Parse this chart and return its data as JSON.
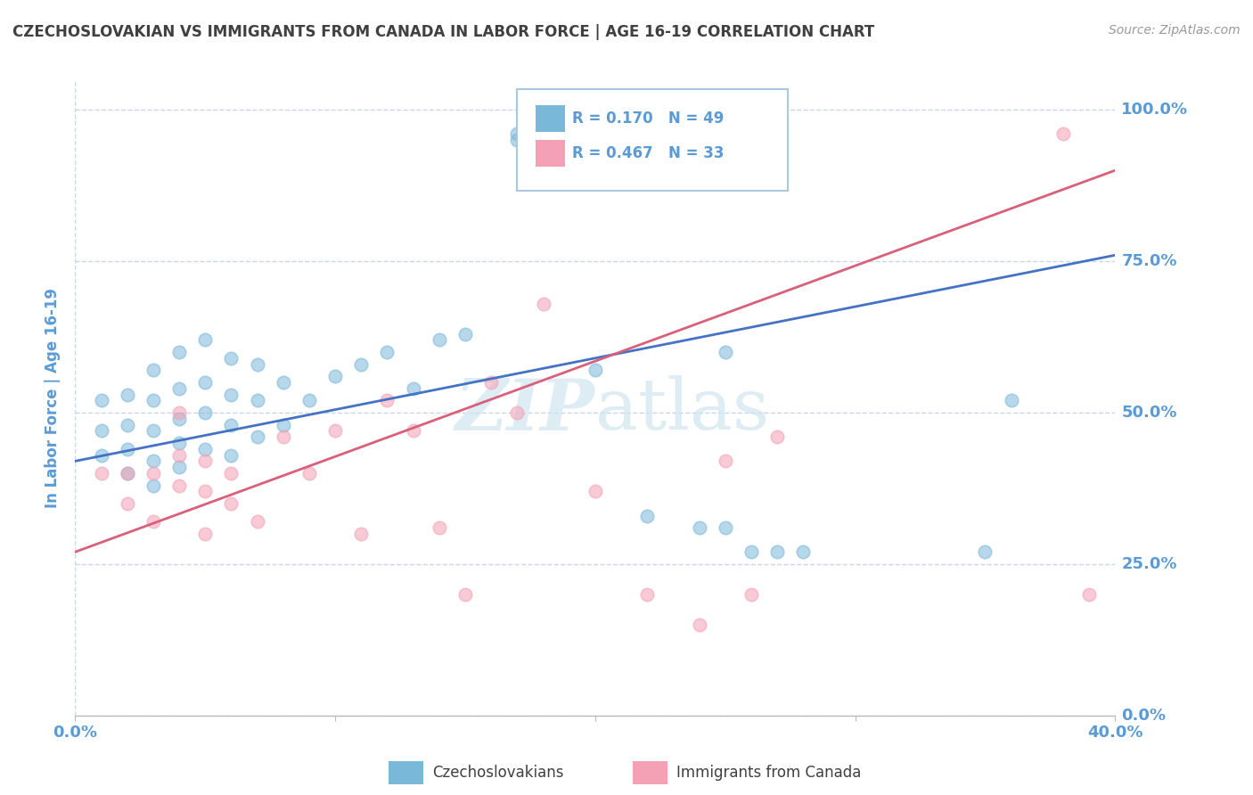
{
  "title": "CZECHOSLOVAKIAN VS IMMIGRANTS FROM CANADA IN LABOR FORCE | AGE 16-19 CORRELATION CHART",
  "source": "Source: ZipAtlas.com",
  "ylabel": "In Labor Force | Age 16-19",
  "watermark_zip": "ZIP",
  "watermark_atlas": "atlas",
  "blue_label": "Czechoslovakians",
  "pink_label": "Immigrants from Canada",
  "blue_r": 0.17,
  "blue_n": 49,
  "pink_r": 0.467,
  "pink_n": 33,
  "blue_color": "#7ab8d9",
  "pink_color": "#f4a0b5",
  "blue_line_color": "#4472c4",
  "pink_line_color": "#d9607a",
  "axis_label_color": "#5b9bd5",
  "title_color": "#404040",
  "grid_color": "#c8d8ea",
  "xlim": [
    0.0,
    0.4
  ],
  "ylim": [
    0.0,
    1.05
  ],
  "yticks": [
    0.0,
    0.25,
    0.5,
    0.75,
    1.0
  ],
  "ytick_labels": [
    "0.0%",
    "25.0%",
    "50.0%",
    "75.0%",
    "100.0%"
  ],
  "blue_line_x0": 0.0,
  "blue_line_y0": 0.42,
  "blue_line_x1": 0.4,
  "blue_line_y1": 0.76,
  "pink_line_x0": 0.0,
  "pink_line_y0": 0.27,
  "pink_line_x1": 0.4,
  "pink_line_y1": 0.9,
  "blue_scatter_x": [
    0.01,
    0.01,
    0.01,
    0.02,
    0.02,
    0.02,
    0.02,
    0.03,
    0.03,
    0.03,
    0.03,
    0.03,
    0.04,
    0.04,
    0.04,
    0.04,
    0.04,
    0.05,
    0.05,
    0.05,
    0.05,
    0.06,
    0.06,
    0.06,
    0.06,
    0.07,
    0.07,
    0.07,
    0.08,
    0.08,
    0.09,
    0.1,
    0.11,
    0.12,
    0.13,
    0.14,
    0.15,
    0.17,
    0.17,
    0.2,
    0.22,
    0.24,
    0.25,
    0.25,
    0.26,
    0.27,
    0.28,
    0.35,
    0.36
  ],
  "blue_scatter_y": [
    0.43,
    0.47,
    0.52,
    0.4,
    0.44,
    0.48,
    0.53,
    0.38,
    0.42,
    0.47,
    0.52,
    0.57,
    0.41,
    0.45,
    0.49,
    0.54,
    0.6,
    0.44,
    0.5,
    0.55,
    0.62,
    0.43,
    0.48,
    0.53,
    0.59,
    0.46,
    0.52,
    0.58,
    0.48,
    0.55,
    0.52,
    0.56,
    0.58,
    0.6,
    0.54,
    0.62,
    0.63,
    0.95,
    0.96,
    0.57,
    0.33,
    0.31,
    0.31,
    0.6,
    0.27,
    0.27,
    0.27,
    0.27,
    0.52
  ],
  "pink_scatter_x": [
    0.01,
    0.02,
    0.02,
    0.03,
    0.03,
    0.04,
    0.04,
    0.04,
    0.05,
    0.05,
    0.05,
    0.06,
    0.06,
    0.07,
    0.08,
    0.09,
    0.1,
    0.11,
    0.12,
    0.13,
    0.14,
    0.15,
    0.16,
    0.17,
    0.18,
    0.2,
    0.22,
    0.24,
    0.25,
    0.26,
    0.27,
    0.38,
    0.39
  ],
  "pink_scatter_y": [
    0.4,
    0.35,
    0.4,
    0.32,
    0.4,
    0.43,
    0.5,
    0.38,
    0.3,
    0.37,
    0.42,
    0.35,
    0.4,
    0.32,
    0.46,
    0.4,
    0.47,
    0.3,
    0.52,
    0.47,
    0.31,
    0.2,
    0.55,
    0.5,
    0.68,
    0.37,
    0.2,
    0.15,
    0.42,
    0.2,
    0.46,
    0.96,
    0.2
  ]
}
